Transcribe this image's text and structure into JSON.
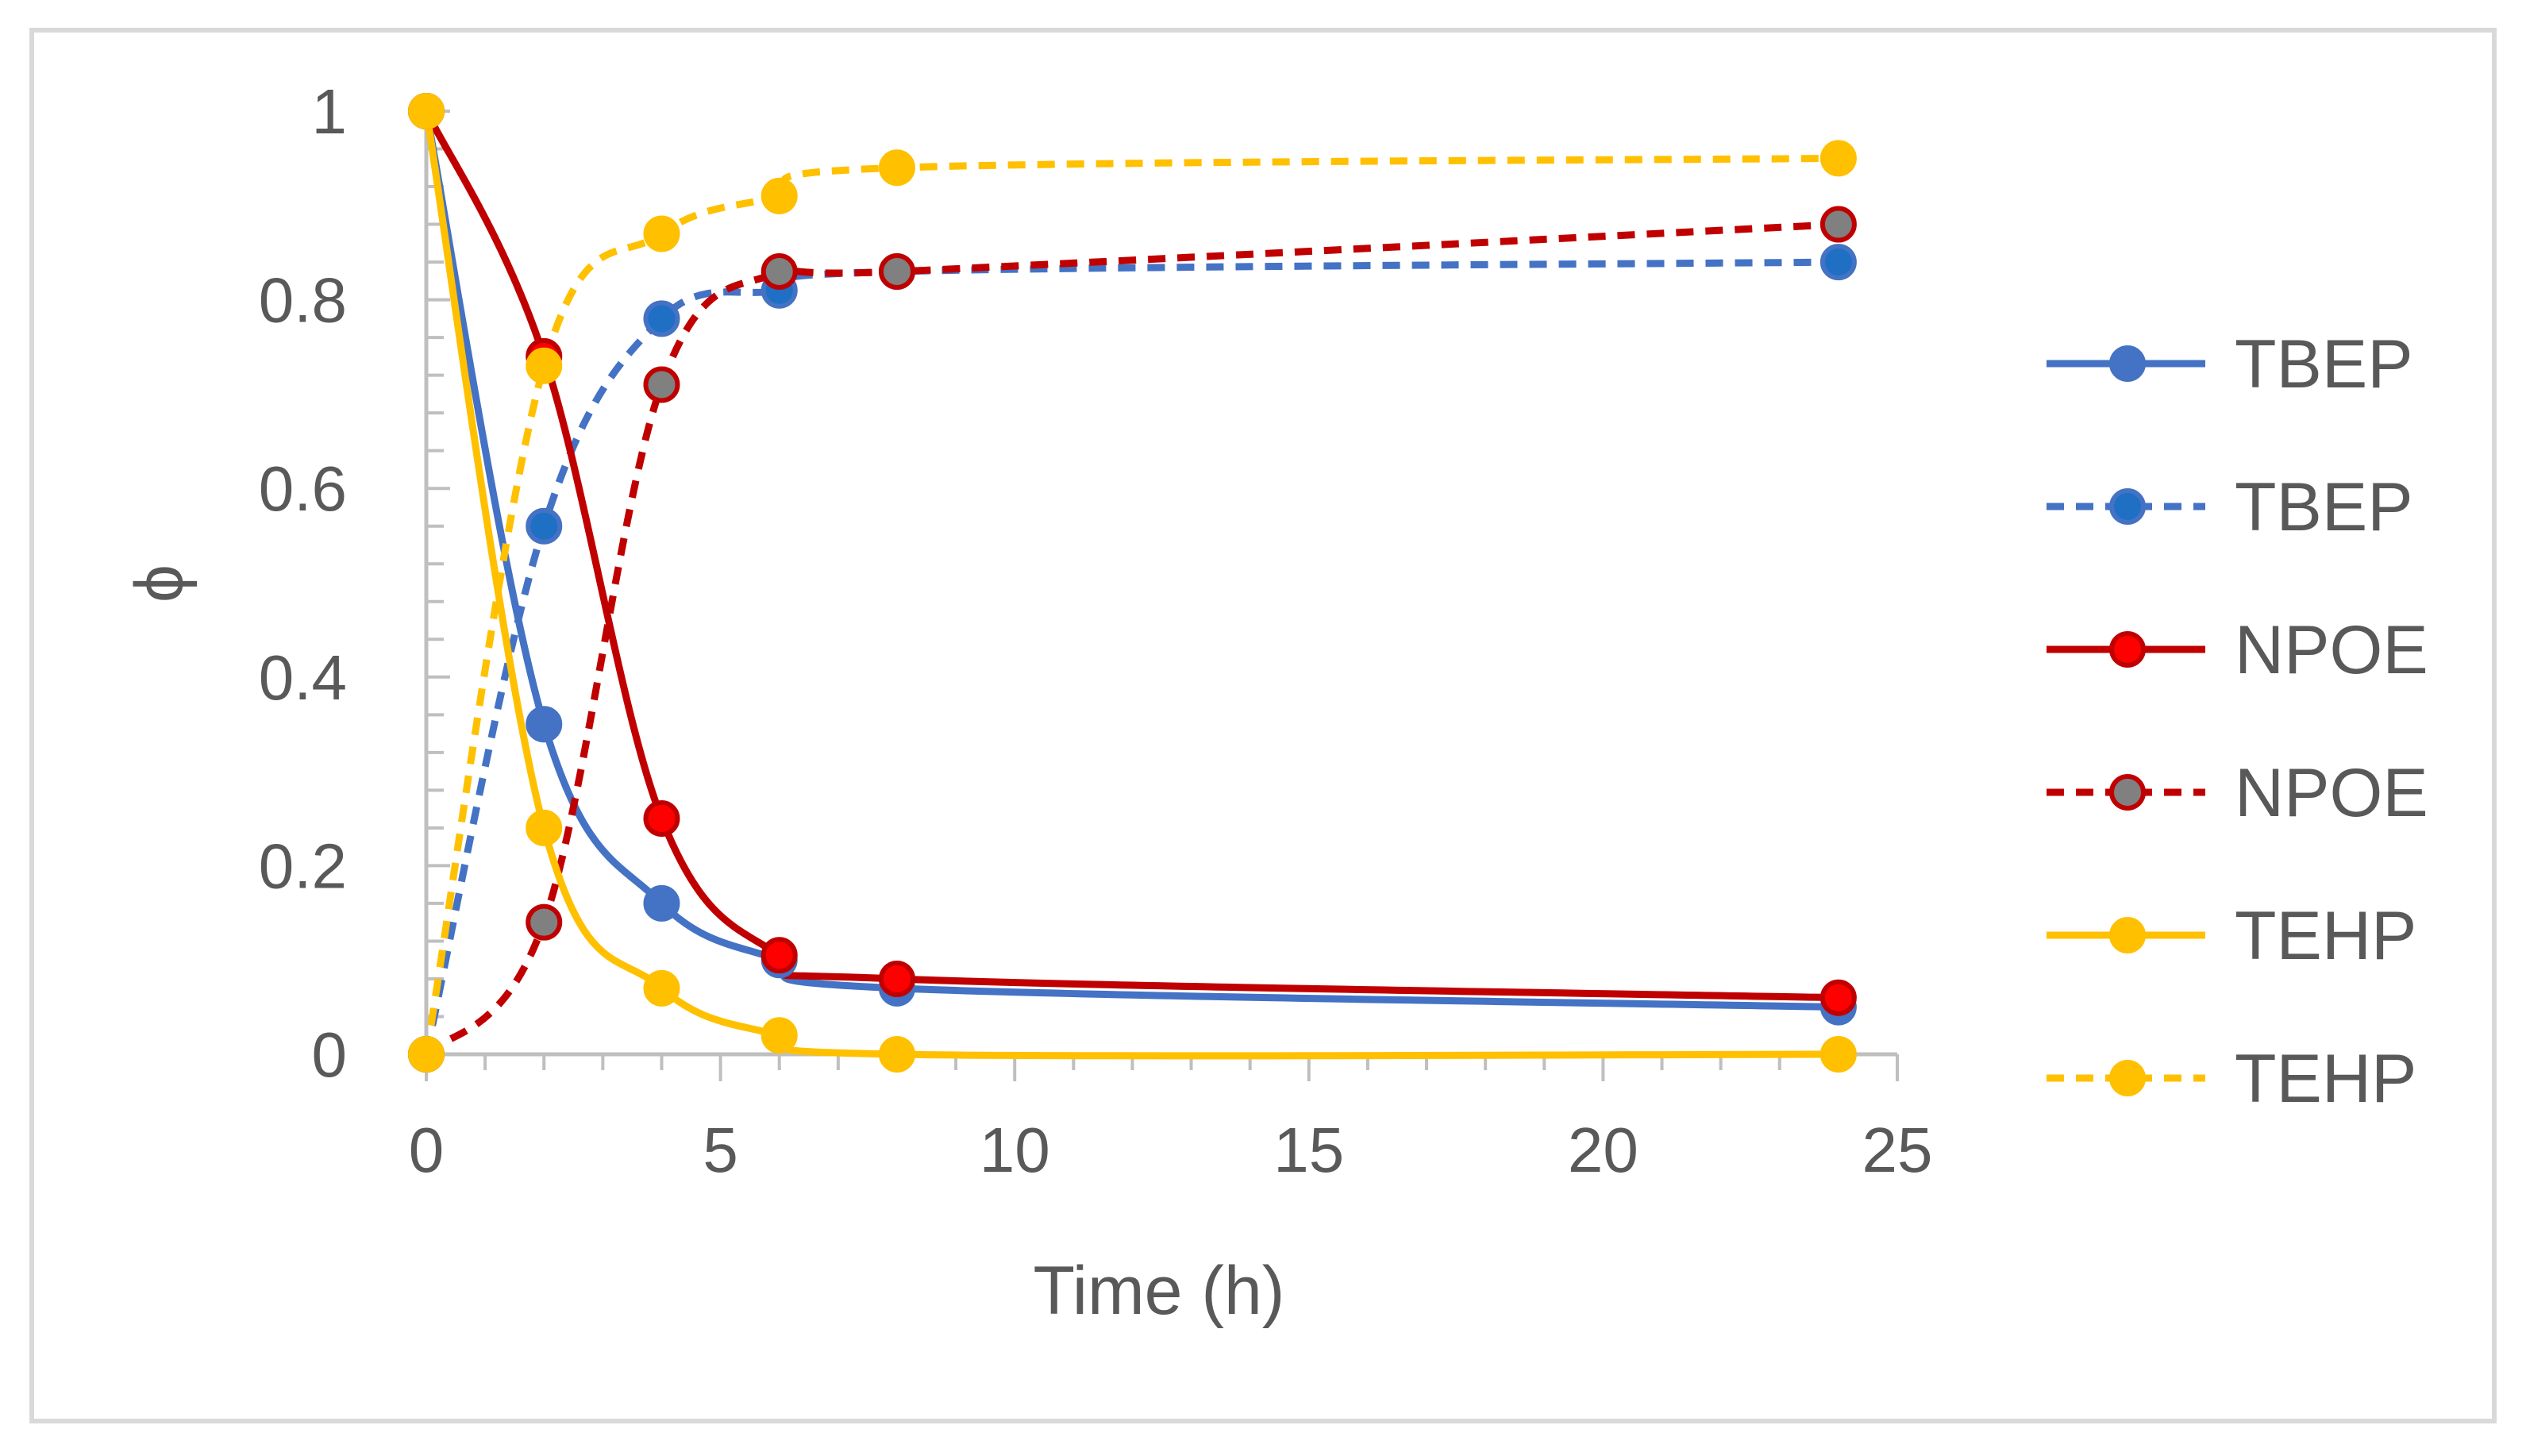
{
  "chart_data": {
    "type": "line",
    "title": "",
    "xlabel": "Time (h)",
    "ylabel": "ϕ",
    "xlim": [
      0,
      25
    ],
    "ylim": [
      0,
      1
    ],
    "x_ticks": [
      0,
      5,
      10,
      15,
      20,
      25
    ],
    "y_ticks": [
      0,
      0.2,
      0.4,
      0.6,
      0.8,
      1
    ],
    "x_tick_labels": [
      "0",
      "5",
      "10",
      "15",
      "20",
      "25"
    ],
    "y_tick_labels": [
      "0",
      "0.2",
      "0.4",
      "0.6",
      "0.8",
      "1"
    ],
    "grid": false,
    "legend_position": "right",
    "series": [
      {
        "name": "TBEP",
        "style": "solid",
        "color": "#4472C4",
        "marker_fill": "#4472C4",
        "marker_stroke": "#4472C4",
        "x": [
          0,
          2,
          4,
          6,
          8,
          24
        ],
        "y": [
          1,
          0.35,
          0.16,
          0.1,
          0.07,
          0.05
        ]
      },
      {
        "name": "TBEP",
        "style": "dashed",
        "color": "#4472C4",
        "marker_fill": "#1F6FC5",
        "marker_stroke": "#4472C4",
        "x": [
          0,
          2,
          4,
          6,
          8,
          24
        ],
        "y": [
          0,
          0.56,
          0.78,
          0.81,
          0.83,
          0.84
        ]
      },
      {
        "name": "NPOE",
        "style": "solid",
        "color": "#C00000",
        "marker_fill": "#FF0000",
        "marker_stroke": "#C00000",
        "x": [
          0,
          2,
          4,
          6,
          8,
          24
        ],
        "y": [
          1,
          0.74,
          0.25,
          0.105,
          0.08,
          0.06
        ]
      },
      {
        "name": "NPOE",
        "style": "dashed",
        "color": "#C00000",
        "marker_fill": "#808080",
        "marker_stroke": "#C00000",
        "x": [
          0,
          2,
          4,
          6,
          8,
          24
        ],
        "y": [
          0,
          0.14,
          0.71,
          0.83,
          0.83,
          0.88
        ]
      },
      {
        "name": "TEHP",
        "style": "solid",
        "color": "#FFC000",
        "marker_fill": "#FFC000",
        "marker_stroke": "#FFC000",
        "x": [
          0,
          2,
          4,
          6,
          8,
          24
        ],
        "y": [
          1,
          0.24,
          0.07,
          0.02,
          0,
          0
        ]
      },
      {
        "name": "TEHP",
        "style": "dashed",
        "color": "#FFC000",
        "marker_fill": "#FFC000",
        "marker_stroke": "#FFC000",
        "x": [
          0,
          2,
          4,
          6,
          8,
          24
        ],
        "y": [
          0,
          0.73,
          0.87,
          0.91,
          0.94,
          0.95
        ]
      }
    ]
  }
}
